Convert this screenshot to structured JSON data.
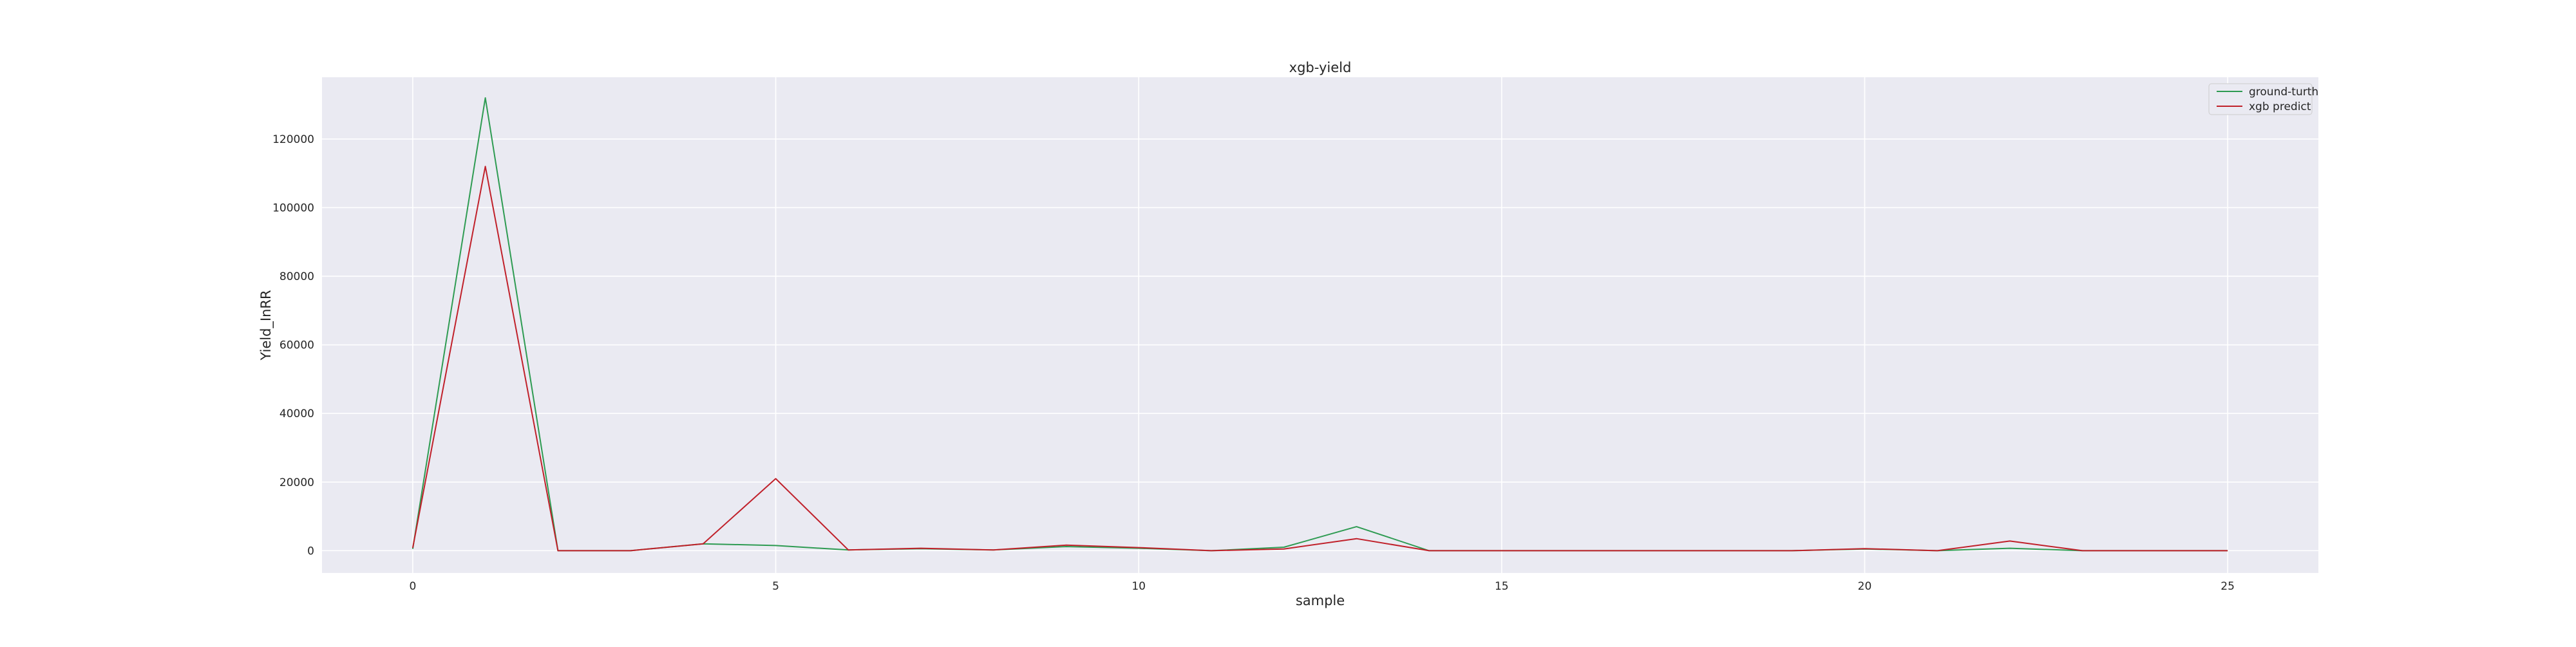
{
  "chart_data": {
    "type": "line",
    "title": "xgb-yield",
    "xlabel": "sample",
    "ylabel": "Yield_InRR",
    "x": [
      0,
      1,
      2,
      3,
      4,
      5,
      6,
      7,
      8,
      9,
      10,
      11,
      12,
      13,
      14,
      15,
      16,
      17,
      18,
      19,
      20,
      21,
      22,
      23,
      24,
      25
    ],
    "xlim": [
      -1.25,
      26.25
    ],
    "ylim": [
      -6500,
      138000
    ],
    "xticks": [
      0,
      5,
      10,
      15,
      20,
      25
    ],
    "xtick_labels": [
      "0",
      "5",
      "10",
      "15",
      "20",
      "25"
    ],
    "yticks": [
      0,
      20000,
      40000,
      60000,
      80000,
      100000,
      120000
    ],
    "ytick_labels": [
      "0",
      "20000",
      "40000",
      "60000",
      "80000",
      "100000",
      "120000"
    ],
    "grid": true,
    "legend_position": "top-right",
    "series": [
      {
        "name": "ground-turth",
        "color": "#2e9b52",
        "values": [
          500,
          132000,
          0,
          0,
          2000,
          1500,
          200,
          600,
          200,
          1200,
          700,
          0,
          1000,
          7000,
          0,
          0,
          0,
          0,
          0,
          0,
          500,
          0,
          700,
          0,
          0,
          0
        ]
      },
      {
        "name": "xgb predict",
        "color": "#c0202a",
        "values": [
          800,
          112000,
          0,
          0,
          2000,
          21000,
          200,
          700,
          200,
          1600,
          900,
          0,
          500,
          3500,
          0,
          0,
          0,
          0,
          0,
          0,
          600,
          0,
          2800,
          0,
          0,
          0
        ]
      }
    ]
  }
}
